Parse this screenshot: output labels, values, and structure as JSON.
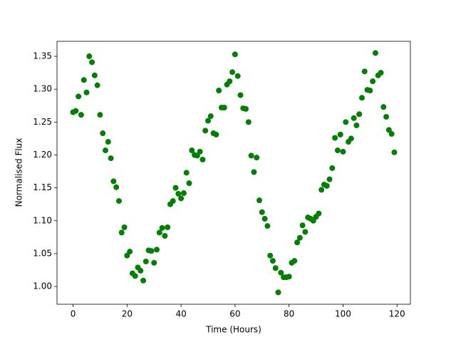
{
  "chart_data": {
    "type": "scatter",
    "xlabel": "Time (Hours)",
    "ylabel": "Normalised Flux",
    "color": "#008000",
    "x": [
      0,
      1,
      2,
      3,
      4,
      5,
      6,
      7,
      8,
      9,
      10,
      11,
      12,
      13,
      14,
      15,
      16,
      17,
      18,
      19,
      20,
      21,
      22,
      23,
      24,
      25,
      26,
      27,
      28,
      29,
      30,
      31,
      32,
      33,
      34,
      35,
      36,
      37,
      38,
      39,
      40,
      41,
      42,
      43,
      44,
      45,
      46,
      47,
      48,
      49,
      50,
      51,
      52,
      53,
      54,
      55,
      56,
      57,
      58,
      59,
      60,
      61,
      62,
      63,
      64,
      65,
      66,
      67,
      68,
      69,
      70,
      71,
      72,
      73,
      74,
      75,
      76,
      77,
      78,
      79,
      80,
      81,
      82,
      83,
      84,
      85,
      86,
      87,
      88,
      89,
      90,
      91,
      92,
      93,
      94,
      95,
      96,
      97,
      98,
      99,
      100,
      101,
      102,
      103,
      104,
      105,
      106,
      107,
      108,
      109,
      110,
      111,
      112,
      113,
      114,
      115,
      116,
      117,
      118,
      119
    ],
    "values": [
      1.265,
      1.267,
      1.289,
      1.261,
      1.314,
      1.295,
      1.35,
      1.341,
      1.321,
      1.306,
      1.261,
      1.233,
      1.207,
      1.22,
      1.195,
      1.16,
      1.151,
      1.13,
      1.082,
      1.09,
      1.047,
      1.053,
      1.02,
      1.016,
      1.029,
      1.024,
      1.009,
      1.038,
      1.055,
      1.054,
      1.036,
      1.056,
      1.082,
      1.089,
      1.077,
      1.09,
      1.125,
      1.13,
      1.15,
      1.141,
      1.134,
      1.142,
      1.173,
      1.157,
      1.207,
      1.2,
      1.199,
      1.205,
      1.193,
      1.237,
      1.252,
      1.259,
      1.233,
      1.231,
      1.298,
      1.272,
      1.272,
      1.307,
      1.312,
      1.326,
      1.353,
      1.32,
      1.291,
      1.271,
      1.27,
      1.25,
      1.199,
      1.174,
      1.196,
      1.131,
      1.113,
      1.103,
      1.092,
      1.047,
      1.039,
      1.028,
      0.991,
      1.021,
      1.014,
      1.014,
      1.015,
      1.036,
      1.039,
      1.067,
      1.074,
      1.093,
      1.083,
      1.105,
      1.103,
      1.1,
      1.106,
      1.111,
      1.147,
      1.155,
      1.153,
      1.163,
      1.18,
      1.226,
      1.207,
      1.231,
      1.205,
      1.25,
      1.22,
      1.225,
      1.256,
      1.245,
      1.262,
      1.287,
      1.327,
      1.299,
      1.298,
      1.312,
      1.355,
      1.321,
      1.325,
      1.273,
      1.258,
      1.238,
      1.232,
      1.204
    ],
    "xlim": [
      -5.95,
      124.95
    ],
    "xticks": [
      0,
      20,
      40,
      60,
      80,
      100,
      120
    ],
    "ylim": [
      0.973,
      1.3728
    ],
    "yticks": [
      {
        "value": 1.0,
        "label": "1.00"
      },
      1.05,
      {
        "value": 1.1,
        "label": "1.10"
      },
      1.15,
      {
        "value": 1.2,
        "label": "1.20"
      },
      1.25,
      {
        "value": 1.3,
        "label": "1.30"
      },
      1.35
    ]
  }
}
